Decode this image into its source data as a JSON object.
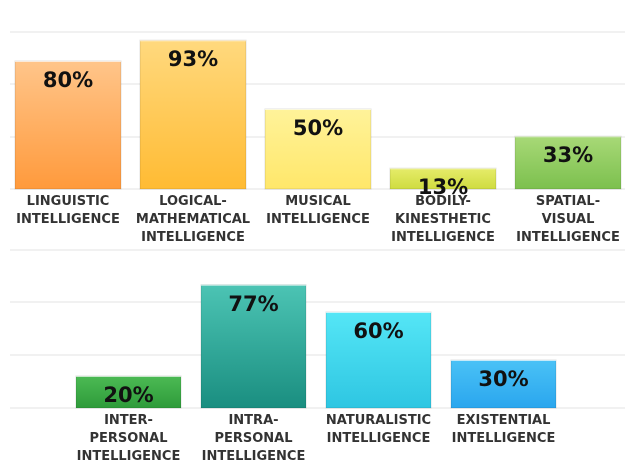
{
  "chart_data": [
    {
      "type": "bar",
      "categories": [
        [
          "LINGUISTIC",
          "INTELLIGENCE"
        ],
        [
          "LOGICAL-",
          "MATHEMATICAL",
          "INTELLIGENCE"
        ],
        [
          "MUSICAL",
          "INTELLIGENCE"
        ],
        [
          "BODILY-",
          "KINESTHETIC",
          "INTELLIGENCE"
        ],
        [
          "SPATIAL-",
          "VISUAL",
          "INTELLIGENCE"
        ]
      ],
      "values": [
        80,
        93,
        50,
        13,
        33
      ],
      "value_labels": [
        "80%",
        "93%",
        "50%",
        "13%",
        "33%"
      ],
      "colors": [
        [
          "#ffc58a",
          "#ff9a3c"
        ],
        [
          "#ffd97e",
          "#ffbb33"
        ],
        [
          "#fff39a",
          "#ffe76a"
        ],
        [
          "#e6ec6a",
          "#cfdc40"
        ],
        [
          "#a8d977",
          "#7cc04e"
        ]
      ],
      "ylim": [
        0,
        100
      ],
      "grid": true
    },
    {
      "type": "bar",
      "categories": [
        [
          "INTER-",
          "PERSONAL",
          "INTELLIGENCE"
        ],
        [
          "INTRA-",
          "PERSONAL",
          "INTELLIGENCE"
        ],
        [
          "NATURALISTIC",
          "INTELLIGENCE"
        ],
        [
          "EXISTENTIAL",
          "INTELLIGENCE"
        ]
      ],
      "values": [
        20,
        77,
        60,
        30
      ],
      "value_labels": [
        "20%",
        "77%",
        "60%",
        "30%"
      ],
      "colors": [
        [
          "#4cba54",
          "#2e9b3a"
        ],
        [
          "#4cc4b4",
          "#1a8e80"
        ],
        [
          "#55e6f6",
          "#2ec6e2"
        ],
        [
          "#4ac2f6",
          "#2aa6ee"
        ]
      ],
      "ylim": [
        0,
        100
      ],
      "grid": true
    }
  ]
}
